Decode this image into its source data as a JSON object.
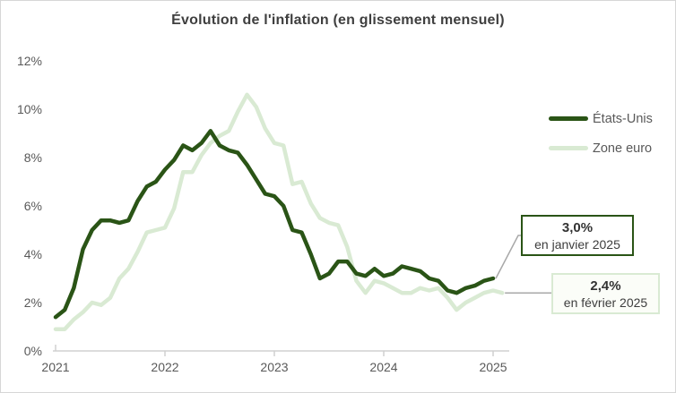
{
  "chart_data": {
    "type": "line",
    "title": "Évolution de l'inflation (en glissement mensuel)",
    "x_unit": "month",
    "x_start": "2021-01",
    "x_tick_labels": [
      "2021",
      "2022",
      "2023",
      "2024",
      "2025"
    ],
    "y_tick_labels": [
      "0%",
      "2%",
      "4%",
      "6%",
      "8%",
      "10%",
      "12%"
    ],
    "ylim": [
      0,
      12
    ],
    "grid": false,
    "legend_position": "right-inside",
    "axis_color": "#d0d0d0",
    "tick_text_color": "#595959",
    "series": [
      {
        "name": "États-Unis",
        "color": "#2a5416",
        "values": [
          1.4,
          1.7,
          2.6,
          4.2,
          5.0,
          5.4,
          5.4,
          5.3,
          5.4,
          6.2,
          6.8,
          7.0,
          7.5,
          7.9,
          8.5,
          8.3,
          8.6,
          9.1,
          8.5,
          8.3,
          8.2,
          7.7,
          7.1,
          6.5,
          6.4,
          6.0,
          5.0,
          4.9,
          4.0,
          3.0,
          3.2,
          3.7,
          3.7,
          3.2,
          3.1,
          3.4,
          3.1,
          3.2,
          3.5,
          3.4,
          3.3,
          3.0,
          2.9,
          2.5,
          2.4,
          2.6,
          2.7,
          2.9,
          3.0
        ]
      },
      {
        "name": "Zone euro",
        "color": "#d9ead3",
        "values": [
          0.9,
          0.9,
          1.3,
          1.6,
          2.0,
          1.9,
          2.2,
          3.0,
          3.4,
          4.1,
          4.9,
          5.0,
          5.1,
          5.9,
          7.4,
          7.4,
          8.1,
          8.6,
          8.9,
          9.1,
          9.9,
          10.6,
          10.1,
          9.2,
          8.6,
          8.5,
          6.9,
          7.0,
          6.1,
          5.5,
          5.3,
          5.2,
          4.3,
          2.9,
          2.4,
          2.9,
          2.8,
          2.6,
          2.4,
          2.4,
          2.6,
          2.5,
          2.6,
          2.2,
          1.7,
          2.0,
          2.2,
          2.4,
          2.5,
          2.4
        ]
      }
    ],
    "annotations": [
      {
        "value": "3,0%",
        "period": "en janvier 2025",
        "series": "États-Unis",
        "border_color": "#2a5416",
        "bg": "#ffffff"
      },
      {
        "value": "2,4%",
        "period": "en février 2025",
        "series": "Zone euro",
        "border_color": "#d9ead3",
        "bg": "#fbfdf8"
      }
    ],
    "connector_color": "#a8a8a8"
  }
}
